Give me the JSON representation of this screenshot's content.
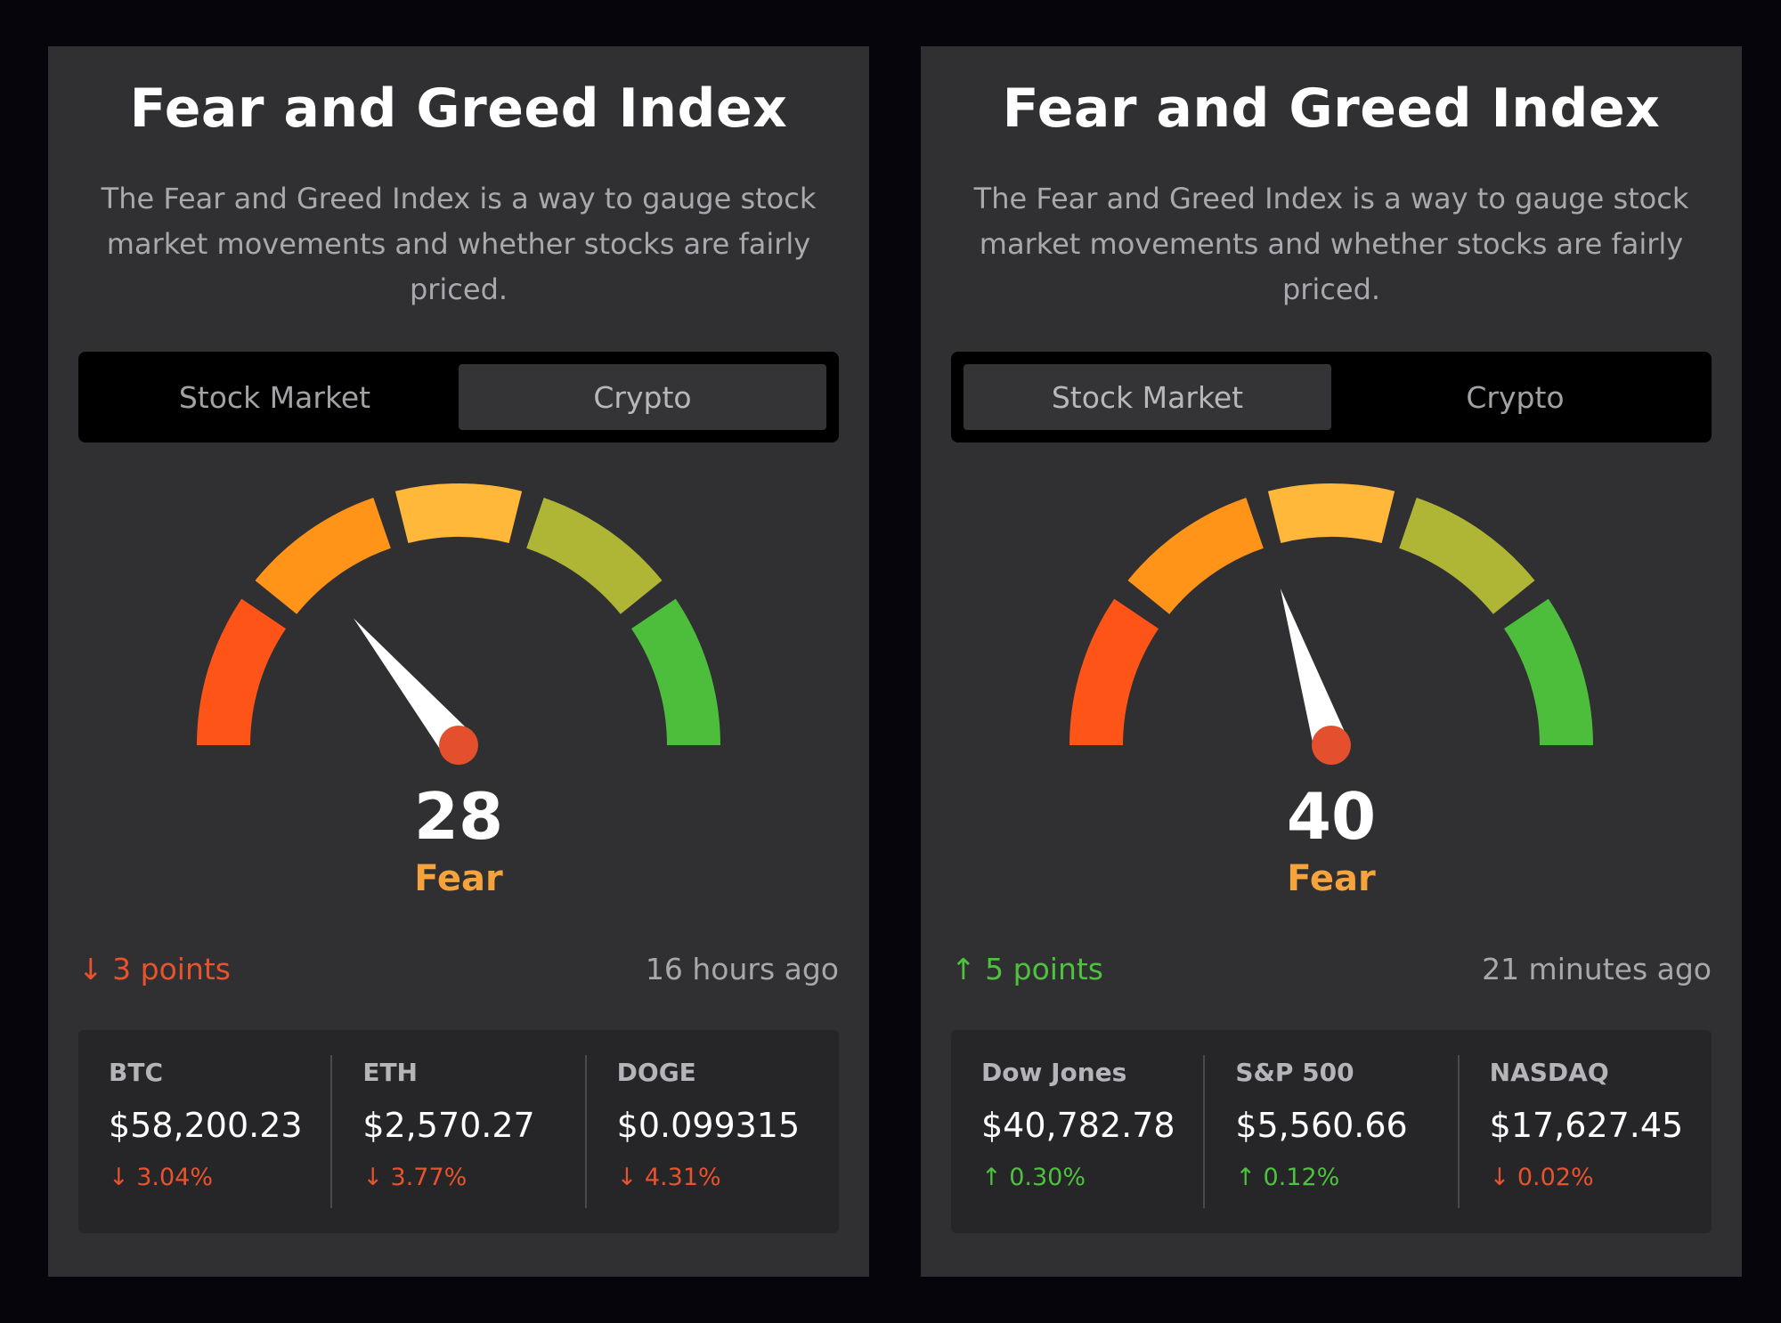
{
  "cards": [
    {
      "title": "Fear and Greed Index",
      "description": "The Fear and Greed Index is a way to gauge stock market movements and whether stocks are fairly priced.",
      "tabs": [
        {
          "label": "Stock Market",
          "active": false
        },
        {
          "label": "Crypto",
          "active": true
        }
      ],
      "score": "28",
      "score_value": 28,
      "sentiment": "Fear",
      "change": {
        "arrow": "↓",
        "text": "3 points",
        "direction": "down"
      },
      "updated": "16 hours ago",
      "tickers": [
        {
          "name": "BTC",
          "price": "$58,200.23",
          "arrow": "↓",
          "change": "3.04%",
          "direction": "down"
        },
        {
          "name": "ETH",
          "price": "$2,570.27",
          "arrow": "↓",
          "change": "3.77%",
          "direction": "down"
        },
        {
          "name": "DOGE",
          "price": "$0.099315",
          "arrow": "↓",
          "change": "4.31%",
          "direction": "down"
        }
      ]
    },
    {
      "title": "Fear and Greed Index",
      "description": "The Fear and Greed Index is a way to gauge stock market movements and whether stocks are fairly priced.",
      "tabs": [
        {
          "label": "Stock Market",
          "active": true
        },
        {
          "label": "Crypto",
          "active": false
        }
      ],
      "score": "40",
      "score_value": 40,
      "sentiment": "Fear",
      "change": {
        "arrow": "↑",
        "text": "5 points",
        "direction": "up"
      },
      "updated": "21 minutes ago",
      "tickers": [
        {
          "name": "Dow Jones",
          "price": "$40,782.78",
          "arrow": "↑",
          "change": "0.30%",
          "direction": "up"
        },
        {
          "name": "S&P 500",
          "price": "$5,560.66",
          "arrow": "↑",
          "change": "0.12%",
          "direction": "up"
        },
        {
          "name": "NASDAQ",
          "price": "$17,627.45",
          "arrow": "↓",
          "change": "0.02%",
          "direction": "down"
        }
      ]
    }
  ],
  "gauge_colors": [
    "#ff5418",
    "#ff9419",
    "#ffb83a",
    "#afb535",
    "#4dbd3c"
  ],
  "needle_color": "#ffffff",
  "needle_hub_color": "#e4502e"
}
